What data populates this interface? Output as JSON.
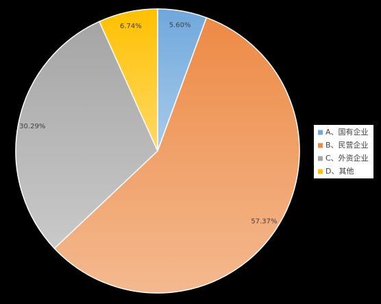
{
  "chart_data": {
    "type": "pie",
    "categories": [
      "A、国有企业",
      "B、民营企业",
      "C、外资企业",
      "D、其他"
    ],
    "values": [
      5.6,
      57.37,
      30.29,
      6.74
    ],
    "value_labels": [
      "5.60%",
      "57.37%",
      "30.29%",
      "6.74%"
    ],
    "colors": [
      "#6fa8dc",
      "#ed8a45",
      "#a5a5a5",
      "#ffc000"
    ],
    "legend": "right"
  }
}
